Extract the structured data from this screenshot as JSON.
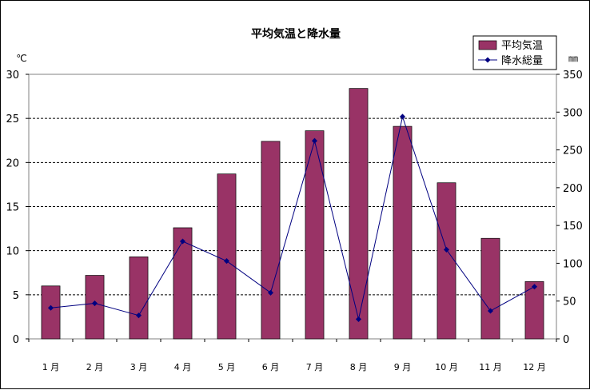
{
  "chart_data": {
    "type": "bar",
    "title": "平均気温と降水量",
    "categories": [
      "1 月",
      "2 月",
      "3 月",
      "4 月",
      "5 月",
      "6 月",
      "7 月",
      "8 月",
      "9 月",
      "10 月",
      "11 月",
      "12 月"
    ],
    "series": [
      {
        "name": "平均気温",
        "type": "bar",
        "axis": "left",
        "color": "#993366",
        "values": [
          6.0,
          7.2,
          9.3,
          12.6,
          18.7,
          22.4,
          23.6,
          28.4,
          24.1,
          17.7,
          11.4,
          6.5
        ]
      },
      {
        "name": "降水総量",
        "type": "line",
        "axis": "right",
        "color": "#000080",
        "values": [
          41,
          47,
          31,
          129,
          103,
          61,
          262,
          26,
          294,
          118,
          37,
          69
        ]
      }
    ],
    "left_axis": {
      "unit": "℃",
      "ylim": [
        0,
        30
      ],
      "ticks": [
        "0",
        "5",
        "10",
        "15",
        "20",
        "25",
        "30"
      ]
    },
    "right_axis": {
      "unit": "㎜",
      "ylim": [
        0,
        350
      ],
      "ticks": [
        "0",
        "50",
        "100",
        "150",
        "200",
        "250",
        "300",
        "350"
      ]
    },
    "grid": true,
    "legend_position": "top-right"
  }
}
